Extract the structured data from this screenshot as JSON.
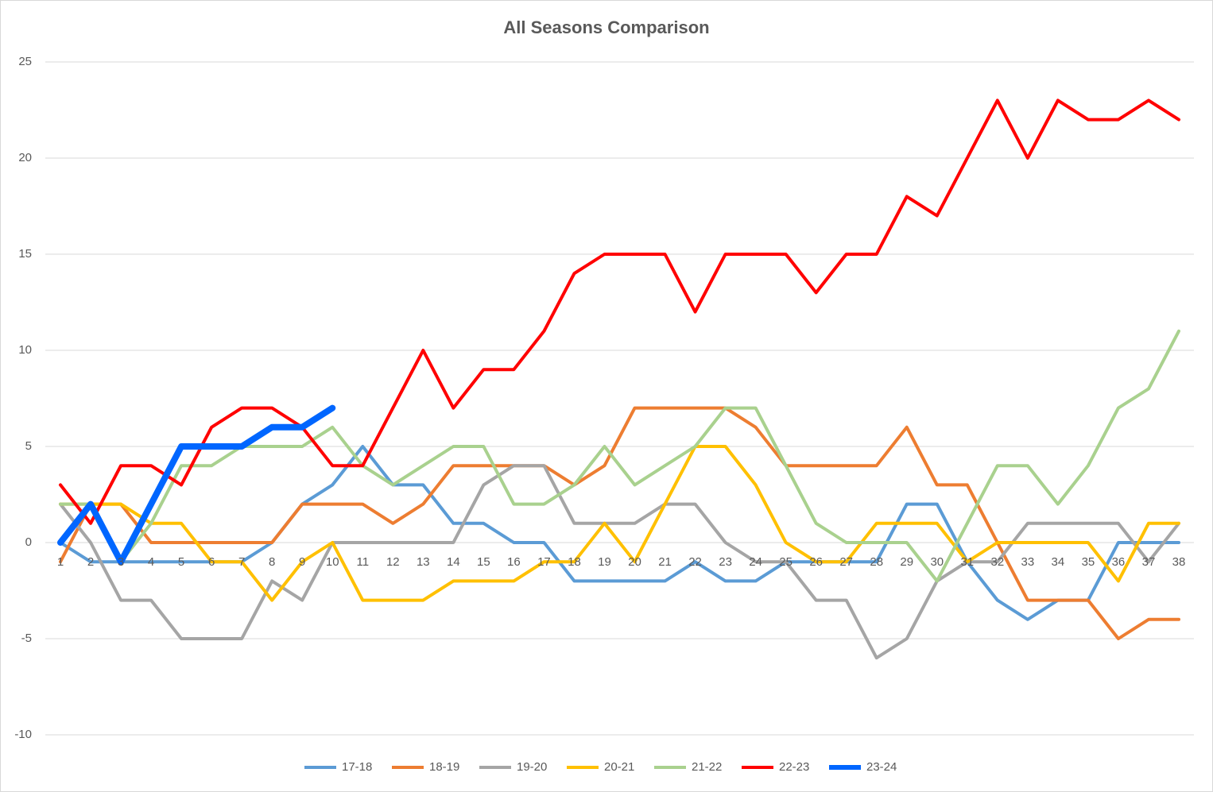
{
  "chart_data": {
    "type": "line",
    "title": "All Seasons Comparison",
    "categories": [
      "1",
      "2",
      "3",
      "4",
      "5",
      "6",
      "7",
      "8",
      "9",
      "10",
      "11",
      "12",
      "13",
      "14",
      "15",
      "16",
      "17",
      "18",
      "19",
      "20",
      "21",
      "22",
      "23",
      "24",
      "25",
      "26",
      "27",
      "28",
      "29",
      "30",
      "31",
      "32",
      "33",
      "34",
      "35",
      "36",
      "37",
      "38"
    ],
    "ylim": [
      -10,
      25
    ],
    "yticks": [
      -10,
      -5,
      0,
      5,
      10,
      15,
      20,
      25
    ],
    "grid": true,
    "legend": "bottom",
    "series": [
      {
        "name": "17-18",
        "color": "#5b9bd5",
        "values": [
          0,
          -1,
          -1,
          -1,
          -1,
          -1,
          -1,
          0,
          2,
          3,
          5,
          3,
          3,
          1,
          1,
          0,
          0,
          -2,
          -2,
          -2,
          -2,
          -1,
          -2,
          -2,
          -1,
          -1,
          -1,
          -1,
          2,
          2,
          -1,
          -3,
          -4,
          -3,
          -3,
          0,
          0,
          0
        ]
      },
      {
        "name": "18-19",
        "color": "#ed7d31",
        "values": [
          -1,
          2,
          2,
          0,
          0,
          0,
          0,
          0,
          2,
          2,
          2,
          1,
          2,
          4,
          4,
          4,
          4,
          3,
          4,
          7,
          7,
          7,
          7,
          6,
          4,
          4,
          4,
          4,
          6,
          3,
          3,
          0,
          -3,
          -3,
          -3,
          -5,
          -4,
          -4
        ]
      },
      {
        "name": "19-20",
        "color": "#a5a5a5",
        "values": [
          2,
          0,
          -3,
          -3,
          -5,
          -5,
          -5,
          -2,
          -3,
          0,
          0,
          0,
          0,
          0,
          3,
          4,
          4,
          1,
          1,
          1,
          2,
          2,
          0,
          -1,
          -1,
          -3,
          -3,
          -6,
          -5,
          -2,
          -1,
          -1,
          1,
          1,
          1,
          1,
          -1,
          1
        ]
      },
      {
        "name": "20-21",
        "color": "#ffc000",
        "values": [
          2,
          2,
          2,
          1,
          1,
          -1,
          -1,
          -3,
          -1,
          0,
          -3,
          -3,
          -3,
          -2,
          -2,
          -2,
          -1,
          -1,
          1,
          -1,
          2,
          5,
          5,
          3,
          0,
          -1,
          -1,
          1,
          1,
          1,
          -1,
          0,
          0,
          0,
          0,
          -2,
          1,
          1
        ]
      },
      {
        "name": "21-22",
        "color": "#a9d18e",
        "values": [
          2,
          2,
          -1,
          1,
          4,
          4,
          5,
          5,
          5,
          6,
          4,
          3,
          4,
          5,
          5,
          2,
          2,
          3,
          5,
          3,
          4,
          5,
          7,
          7,
          4,
          1,
          0,
          0,
          0,
          -2,
          1,
          4,
          4,
          2,
          4,
          7,
          8,
          11
        ]
      },
      {
        "name": "22-23",
        "color": "#ff0000",
        "values": [
          3,
          1,
          4,
          4,
          3,
          6,
          7,
          7,
          6,
          4,
          4,
          7,
          10,
          7,
          9,
          9,
          11,
          14,
          15,
          15,
          15,
          12,
          15,
          15,
          15,
          13,
          15,
          15,
          18,
          17,
          20,
          23,
          20,
          23,
          22,
          22,
          23,
          22
        ]
      },
      {
        "name": "23-24",
        "color": "#0066ff",
        "values": [
          0,
          2,
          -1,
          2,
          5,
          5,
          5,
          6,
          6,
          7,
          null,
          null,
          null,
          null,
          null,
          null,
          null,
          null,
          null,
          null,
          null,
          null,
          null,
          null,
          null,
          null,
          null,
          null,
          null,
          null,
          null,
          null,
          null,
          null,
          null,
          null,
          null,
          null
        ]
      }
    ]
  }
}
